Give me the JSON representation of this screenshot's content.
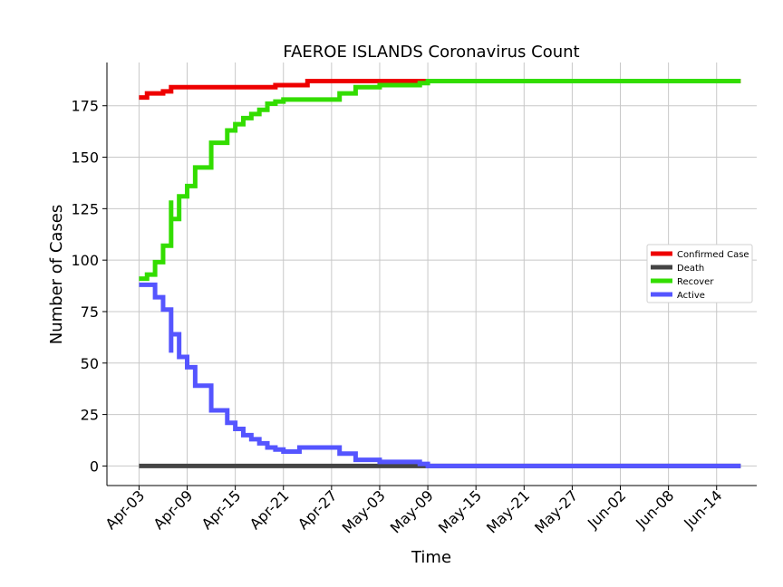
{
  "chart_data": {
    "type": "line",
    "title": "FAEROE ISLANDS Coronavirus Count",
    "xlabel": "Time",
    "ylabel": "Number of Cases",
    "x_start": "2020-04-03",
    "x_end": "2020-06-17",
    "xlim": [
      "2020-03-30",
      "2020-06-19"
    ],
    "ylim": [
      -9.5,
      196
    ],
    "yticks": [
      0,
      25,
      50,
      75,
      100,
      125,
      150,
      175
    ],
    "xticks": [
      {
        "date": "2020-04-03",
        "label": "Apr-03"
      },
      {
        "date": "2020-04-09",
        "label": "Apr-09"
      },
      {
        "date": "2020-04-15",
        "label": "Apr-15"
      },
      {
        "date": "2020-04-21",
        "label": "Apr-21"
      },
      {
        "date": "2020-04-27",
        "label": "Apr-27"
      },
      {
        "date": "2020-05-03",
        "label": "May-03"
      },
      {
        "date": "2020-05-09",
        "label": "May-09"
      },
      {
        "date": "2020-05-15",
        "label": "May-15"
      },
      {
        "date": "2020-05-21",
        "label": "May-21"
      },
      {
        "date": "2020-05-27",
        "label": "May-27"
      },
      {
        "date": "2020-06-02",
        "label": "Jun-02"
      },
      {
        "date": "2020-06-08",
        "label": "Jun-08"
      },
      {
        "date": "2020-06-14",
        "label": "Jun-14"
      }
    ],
    "grid": true,
    "legend_position": "right",
    "series": [
      {
        "name": "Confirmed Case",
        "color": "#ee0000",
        "points": [
          [
            "2020-04-03",
            179
          ],
          [
            "2020-04-04",
            181
          ],
          [
            "2020-04-06",
            182
          ],
          [
            "2020-04-07",
            184
          ],
          [
            "2020-04-20",
            185
          ],
          [
            "2020-04-24",
            187
          ],
          [
            "2020-05-10",
            187
          ],
          [
            "2020-06-17",
            187
          ]
        ]
      },
      {
        "name": "Death",
        "color": "#444444",
        "points": [
          [
            "2020-04-03",
            0
          ],
          [
            "2020-06-17",
            0
          ]
        ]
      },
      {
        "name": "Recover",
        "color": "#33dd00",
        "points": [
          [
            "2020-04-03",
            91
          ],
          [
            "2020-04-04",
            93
          ],
          [
            "2020-04-05",
            99
          ],
          [
            "2020-04-06",
            107
          ],
          [
            "2020-04-07",
            129
          ],
          [
            "2020-04-07",
            120
          ],
          [
            "2020-04-08",
            131
          ],
          [
            "2020-04-09",
            136
          ],
          [
            "2020-04-10",
            145
          ],
          [
            "2020-04-12",
            157
          ],
          [
            "2020-04-14",
            163
          ],
          [
            "2020-04-15",
            166
          ],
          [
            "2020-04-16",
            169
          ],
          [
            "2020-04-17",
            171
          ],
          [
            "2020-04-18",
            173
          ],
          [
            "2020-04-19",
            176
          ],
          [
            "2020-04-20",
            177
          ],
          [
            "2020-04-21",
            178
          ],
          [
            "2020-04-28",
            181
          ],
          [
            "2020-04-30",
            184
          ],
          [
            "2020-05-03",
            185
          ],
          [
            "2020-05-08",
            186
          ],
          [
            "2020-05-09",
            187
          ],
          [
            "2020-06-17",
            187
          ]
        ]
      },
      {
        "name": "Active",
        "color": "#5555ff",
        "points": [
          [
            "2020-04-03",
            88
          ],
          [
            "2020-04-05",
            82
          ],
          [
            "2020-04-06",
            76
          ],
          [
            "2020-04-07",
            55
          ],
          [
            "2020-04-07",
            64
          ],
          [
            "2020-04-08",
            53
          ],
          [
            "2020-04-09",
            48
          ],
          [
            "2020-04-10",
            39
          ],
          [
            "2020-04-12",
            27
          ],
          [
            "2020-04-14",
            21
          ],
          [
            "2020-04-15",
            18
          ],
          [
            "2020-04-16",
            15
          ],
          [
            "2020-04-17",
            13
          ],
          [
            "2020-04-18",
            11
          ],
          [
            "2020-04-19",
            9
          ],
          [
            "2020-04-20",
            8
          ],
          [
            "2020-04-21",
            7
          ],
          [
            "2020-04-23",
            9
          ],
          [
            "2020-04-28",
            6
          ],
          [
            "2020-04-30",
            3
          ],
          [
            "2020-05-03",
            2
          ],
          [
            "2020-05-08",
            1
          ],
          [
            "2020-05-09",
            0
          ],
          [
            "2020-06-17",
            0
          ]
        ]
      }
    ]
  }
}
